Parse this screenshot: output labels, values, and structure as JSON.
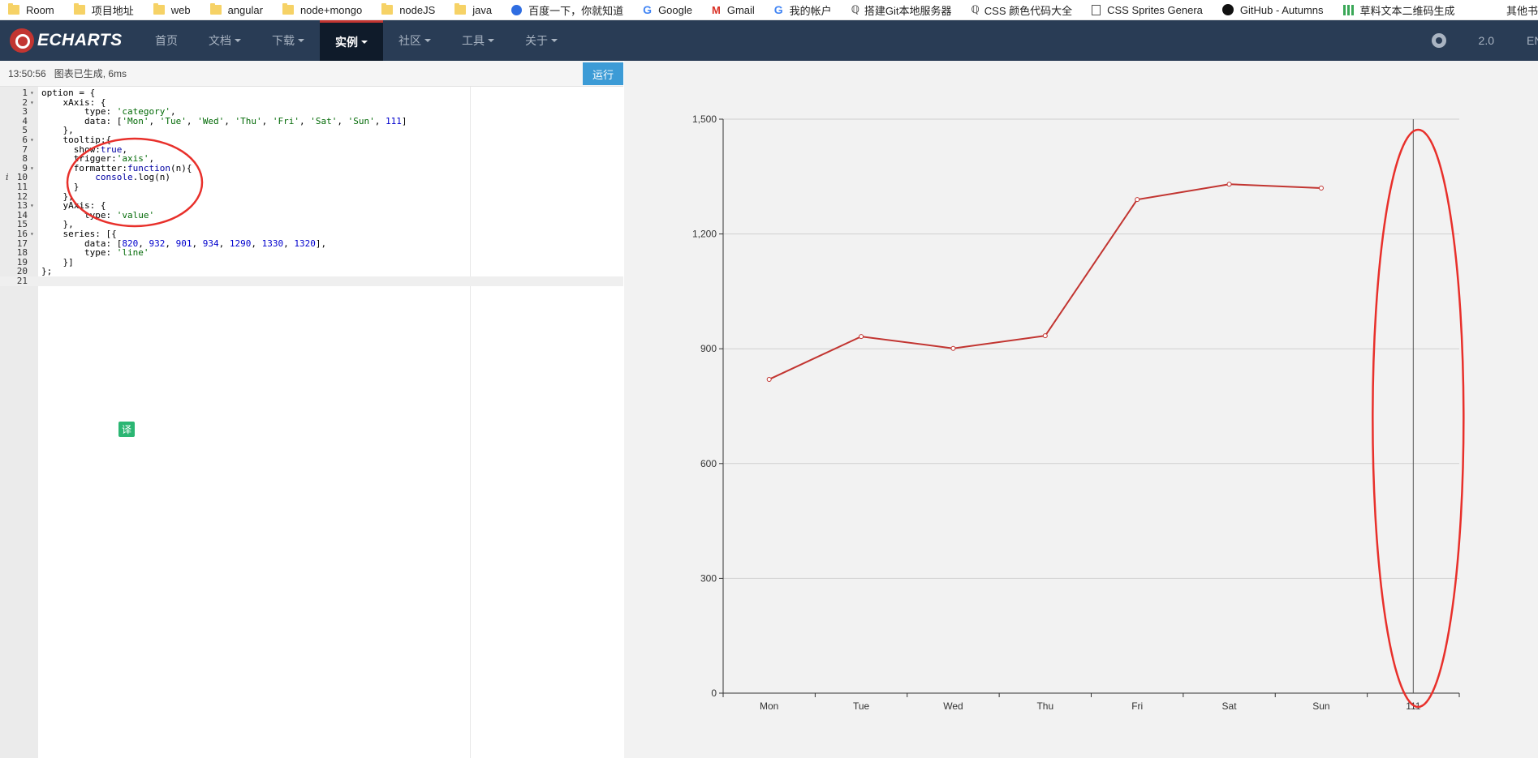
{
  "bookmarks": {
    "items": [
      {
        "label": "Room",
        "icon": "folder-icon"
      },
      {
        "label": "项目地址",
        "icon": "folder-icon"
      },
      {
        "label": "web",
        "icon": "folder-icon"
      },
      {
        "label": "angular",
        "icon": "folder-icon"
      },
      {
        "label": "node+mongo",
        "icon": "folder-icon"
      },
      {
        "label": "nodeJS",
        "icon": "folder-icon"
      },
      {
        "label": "java",
        "icon": "folder-icon"
      },
      {
        "label": "百度一下，你就知道",
        "icon": "baidu-icon"
      },
      {
        "label": "Google",
        "icon": "google-icon"
      },
      {
        "label": "Gmail",
        "icon": "gmail-icon"
      },
      {
        "label": "我的帐户",
        "icon": "google-icon"
      },
      {
        "label": "搭建Git本地服务器",
        "icon": "site-icon"
      },
      {
        "label": "CSS 颜色代码大全",
        "icon": "site-icon"
      },
      {
        "label": "CSS Sprites Genera",
        "icon": "document-icon"
      },
      {
        "label": "GitHub - Autumns",
        "icon": "github-icon"
      },
      {
        "label": "草料文本二维码生成",
        "icon": "qrcode-icon"
      }
    ],
    "more": "»",
    "other": "其他书"
  },
  "nav": {
    "brand": "ECHARTS",
    "items": [
      {
        "label": "首页",
        "caret": false,
        "active": false
      },
      {
        "label": "文档",
        "caret": true,
        "active": false
      },
      {
        "label": "下载",
        "caret": true,
        "active": false
      },
      {
        "label": "实例",
        "caret": true,
        "active": true
      },
      {
        "label": "社区",
        "caret": true,
        "active": false
      },
      {
        "label": "工具",
        "caret": true,
        "active": false
      },
      {
        "label": "关于",
        "caret": true,
        "active": false
      }
    ],
    "version": "2.0",
    "lang": "EN",
    "accent": "#c23531",
    "bg": "#293c55"
  },
  "status": {
    "time": "13:50:56",
    "message": "图表已生成, 6ms",
    "run_label": "运行"
  },
  "editor": {
    "lines": [
      "option = {",
      "    xAxis: {",
      "        type: 'category',",
      "        data: ['Mon', 'Tue', 'Wed', 'Thu', 'Fri', 'Sat', 'Sun', 111]",
      "    },",
      "    tooltip:{",
      "      show:true,",
      "      trigger:'axis',",
      "      formatter:function(n){",
      "          console.log(n)",
      "      }",
      "    },",
      "    yAxis: {",
      "        type: 'value'",
      "    },",
      "    series: [{",
      "        data: [820, 932, 901, 934, 1290, 1330, 1320],",
      "        type: 'line'",
      "    }]",
      "};",
      ""
    ],
    "fold_lines": [
      1,
      2,
      6,
      9,
      13,
      16
    ],
    "info_line": 10,
    "current_line": 21,
    "translate_badge": "译"
  },
  "chart_data": {
    "type": "line",
    "categories": [
      "Mon",
      "Tue",
      "Wed",
      "Thu",
      "Fri",
      "Sat",
      "Sun",
      "111"
    ],
    "series": [
      {
        "values": [
          820,
          932,
          901,
          934,
          1290,
          1330,
          1320,
          null
        ],
        "color": "#c23531"
      }
    ],
    "ylim": [
      0,
      1500
    ],
    "yticks": [
      0,
      300,
      600,
      900,
      1200,
      1500
    ],
    "ytick_labels": [
      "0",
      "300",
      "600",
      "900",
      "1,200",
      "1,500"
    ],
    "grid": true,
    "axis_pointer_category": "111",
    "annotation_color": "#e8302b"
  }
}
